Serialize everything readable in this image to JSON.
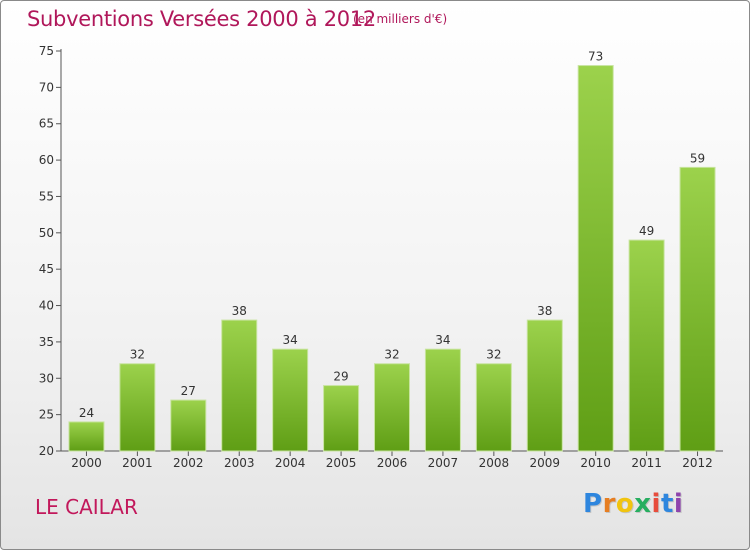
{
  "header": {
    "title": "Subventions Versées 2000 à 2012",
    "subtitle": "(en milliers d'€)"
  },
  "footer": {
    "commune": "LE CAILAR",
    "logo": "Proxiti",
    "logo_colors": [
      "#2e86de",
      "#e67e22",
      "#f1c40f",
      "#27ae60",
      "#e74c3c",
      "#2e86de",
      "#8e44ad"
    ]
  },
  "colors": {
    "bar_top": "#9cd24c",
    "bar_bottom": "#5f9e15",
    "accent": "#b0175a"
  },
  "chart_data": {
    "type": "bar",
    "categories": [
      "2000",
      "2001",
      "2002",
      "2003",
      "2004",
      "2005",
      "2006",
      "2007",
      "2008",
      "2009",
      "2010",
      "2011",
      "2012"
    ],
    "values": [
      24,
      32,
      27,
      38,
      34,
      29,
      32,
      34,
      32,
      38,
      73,
      49,
      59
    ],
    "title": "Subventions Versées 2000 à 2012",
    "subtitle": "(en milliers d'€)",
    "xlabel": "",
    "ylabel": "",
    "ylim": [
      20,
      75
    ],
    "yticks": [
      20,
      25,
      30,
      35,
      40,
      45,
      50,
      55,
      60,
      65,
      70,
      75
    ],
    "grid": false,
    "data_labels": true
  }
}
